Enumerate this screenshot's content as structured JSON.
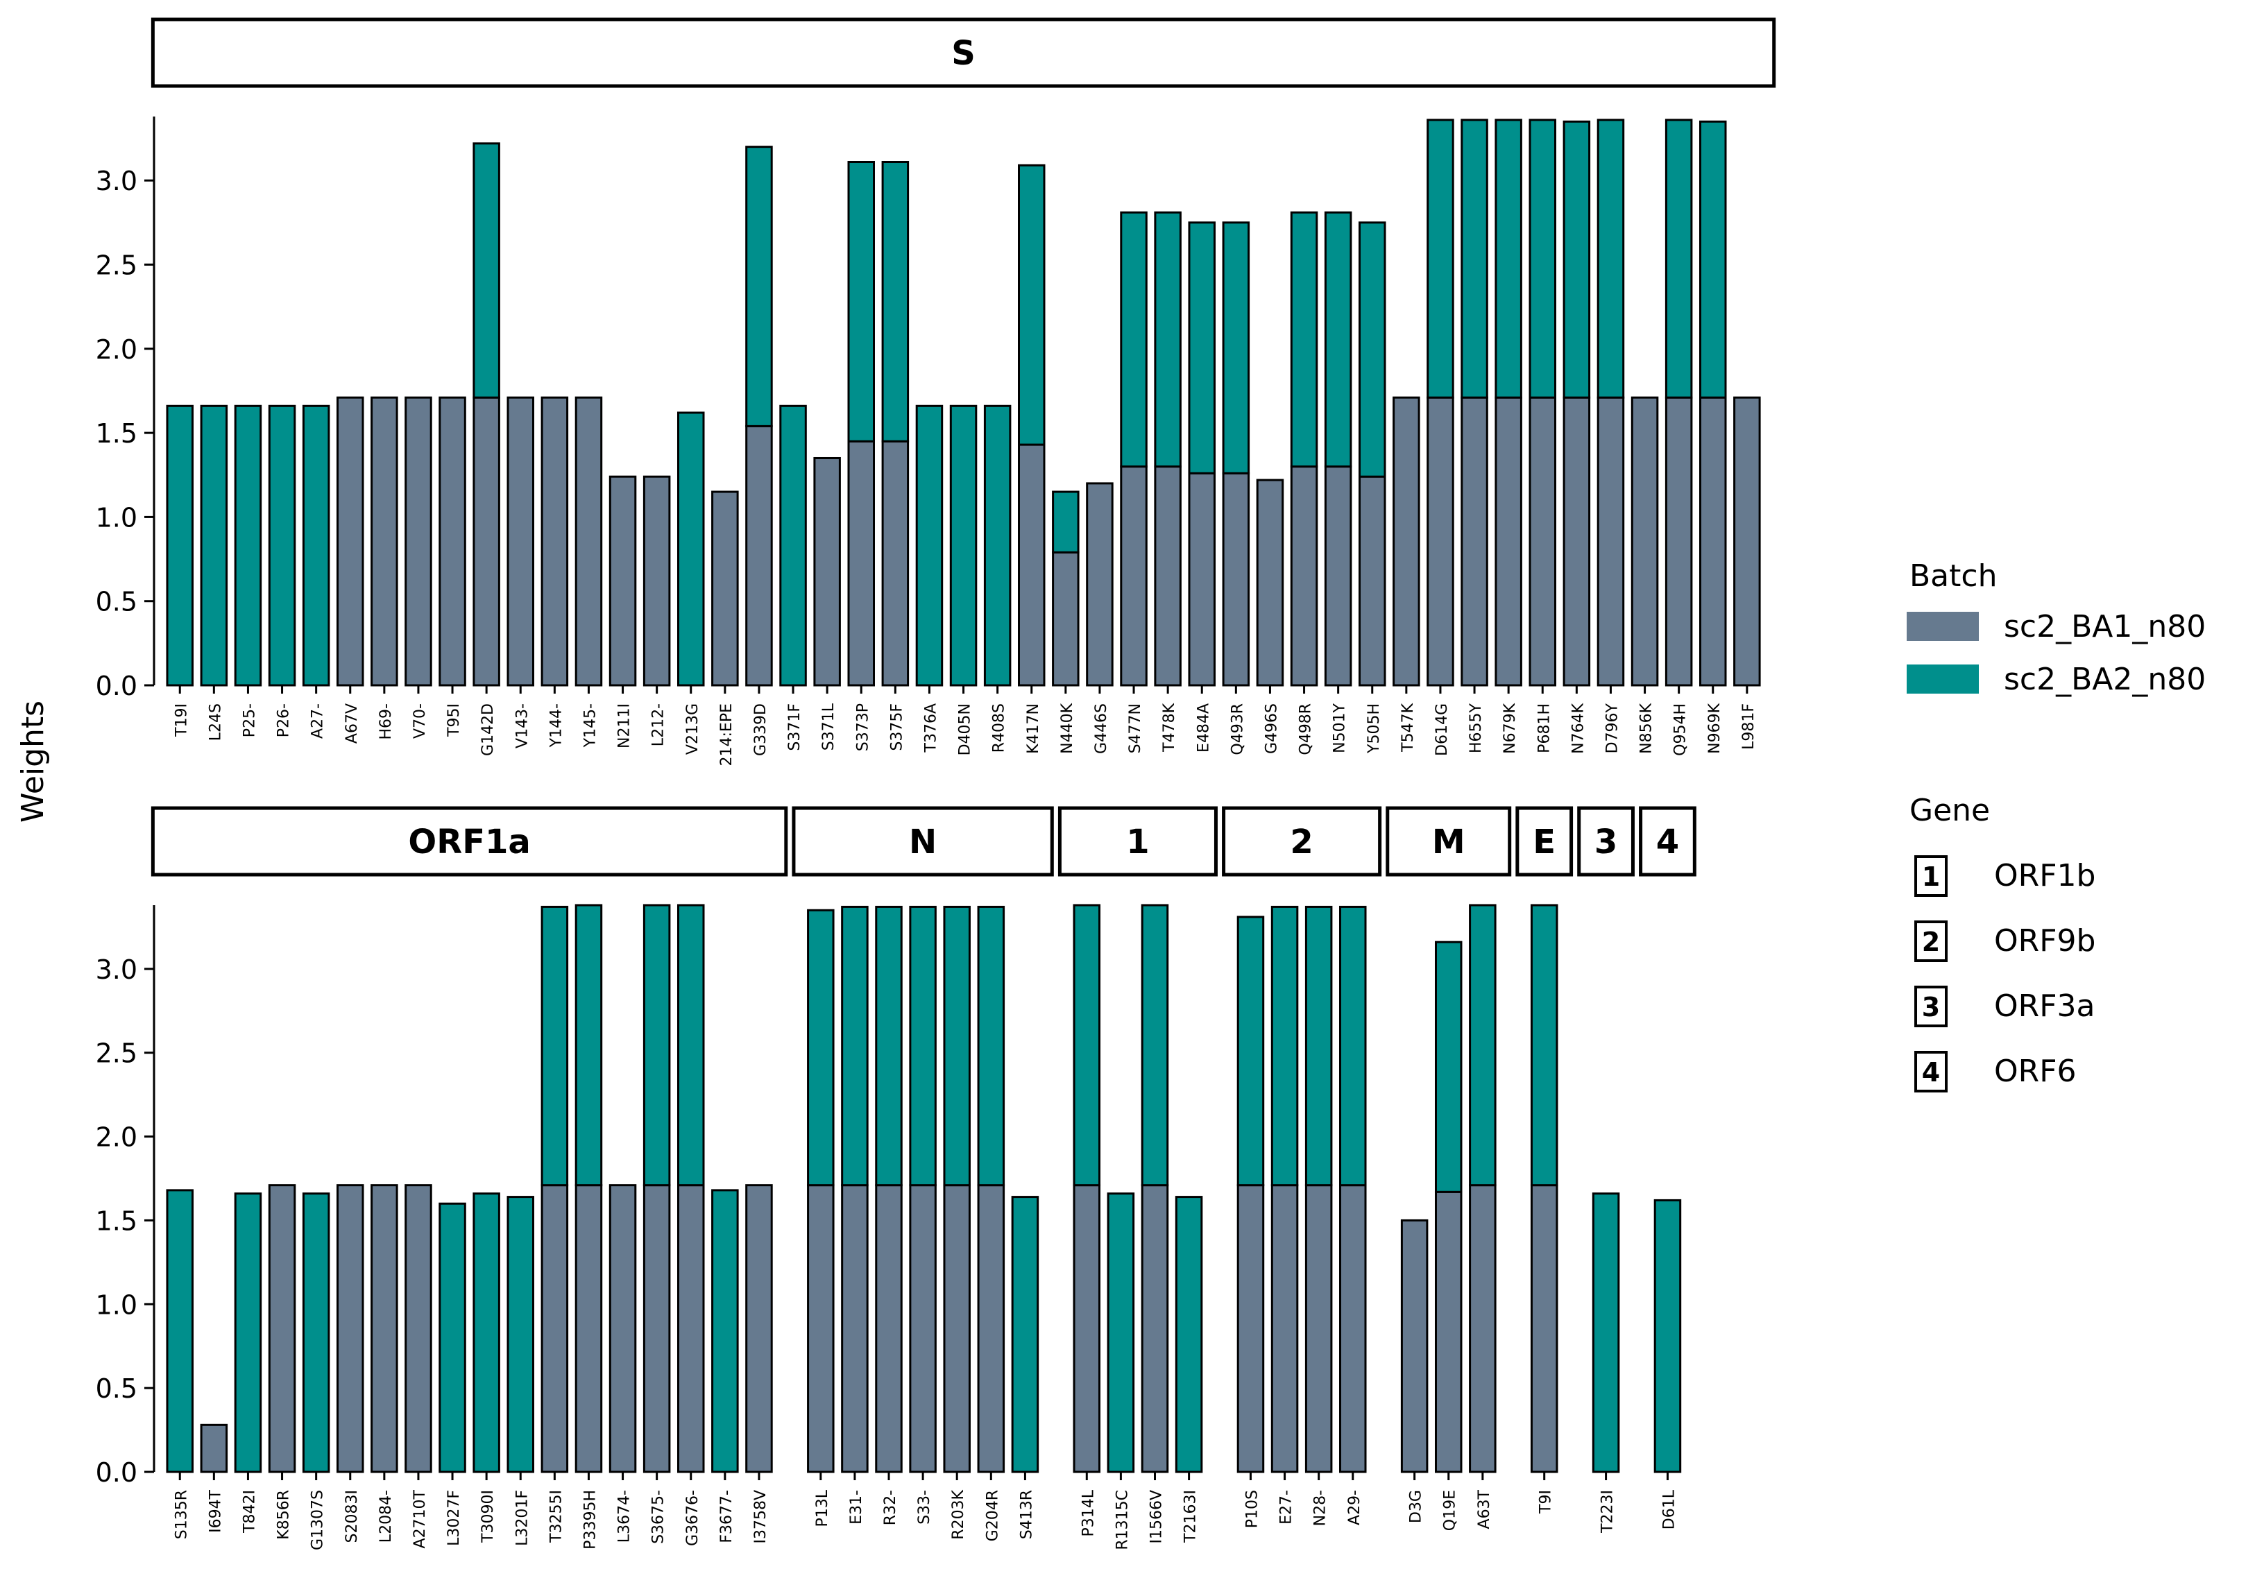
{
  "colors": {
    "sc2_BA1_n80": "#667a8f",
    "sc2_BA2_n80": "#008f8c"
  },
  "chart_data": {
    "type": "bar",
    "stacked": true,
    "ylabel": "Weights",
    "ylim": [
      0,
      3.38
    ],
    "yticks": [
      "0.0",
      "0.5",
      "1.0",
      "1.5",
      "2.0",
      "2.5",
      "3.0"
    ],
    "legend": {
      "position": "right",
      "batch_title": "Batch",
      "batch_items": [
        "sc2_BA1_n80",
        "sc2_BA2_n80"
      ],
      "gene_title": "Gene",
      "gene_items": [
        {
          "key": "1",
          "label": "ORF1b"
        },
        {
          "key": "2",
          "label": "ORF9b"
        },
        {
          "key": "3",
          "label": "ORF3a"
        },
        {
          "key": "4",
          "label": "ORF6"
        }
      ]
    },
    "panels": [
      {
        "row": 0,
        "title": "S",
        "categories": [
          "T19I",
          "L24S",
          "P25-",
          "P26-",
          "A27-",
          "A67V",
          "H69-",
          "V70-",
          "T95I",
          "G142D",
          "V143-",
          "Y144-",
          "Y145-",
          "N211I",
          "L212-",
          "V213G",
          "214:EPE",
          "G339D",
          "S371F",
          "S371L",
          "S373P",
          "S375F",
          "T376A",
          "D405N",
          "R408S",
          "K417N",
          "N440K",
          "G446S",
          "S477N",
          "T478K",
          "E484A",
          "Q493R",
          "G496S",
          "Q498R",
          "N501Y",
          "Y505H",
          "T547K",
          "D614G",
          "H655Y",
          "N679K",
          "P681H",
          "N764K",
          "D796Y",
          "N856K",
          "Q954H",
          "N969K",
          "L981F"
        ],
        "series": [
          {
            "name": "sc2_BA1_n80",
            "values": [
              0,
              0,
              0,
              0,
              0,
              1.71,
              1.71,
              1.71,
              1.71,
              1.71,
              1.71,
              1.71,
              1.71,
              1.24,
              1.24,
              0,
              1.15,
              1.54,
              0,
              1.35,
              1.45,
              1.45,
              0,
              0,
              0,
              1.43,
              0.79,
              1.2,
              1.3,
              1.3,
              1.26,
              1.26,
              1.22,
              1.3,
              1.3,
              1.24,
              1.71,
              1.71,
              1.71,
              1.71,
              1.71,
              1.71,
              1.71,
              1.71,
              1.71,
              1.71,
              1.71
            ]
          },
          {
            "name": "sc2_BA2_n80",
            "values": [
              1.66,
              1.66,
              1.66,
              1.66,
              1.66,
              0,
              0,
              0,
              0,
              1.51,
              0,
              0,
              0,
              0,
              0,
              1.62,
              0,
              1.66,
              1.66,
              0,
              1.66,
              1.66,
              1.66,
              1.66,
              1.66,
              1.66,
              0.36,
              0,
              1.51,
              1.51,
              1.49,
              1.49,
              0,
              1.51,
              1.51,
              1.51,
              0,
              1.65,
              1.65,
              1.65,
              1.65,
              1.64,
              1.65,
              0,
              1.65,
              1.64,
              0
            ]
          }
        ]
      },
      {
        "row": 1,
        "title": "ORF1a",
        "categories": [
          "S135R",
          "I694T",
          "T842I",
          "K856R",
          "G1307S",
          "S2083I",
          "L2084-",
          "A2710T",
          "L3027F",
          "T3090I",
          "L3201F",
          "T3255I",
          "P3395H",
          "L3674-",
          "S3675-",
          "G3676-",
          "F3677-",
          "I3758V"
        ],
        "series": [
          {
            "name": "sc2_BA1_n80",
            "values": [
              0,
              0.28,
              0,
              1.71,
              0,
              1.71,
              1.71,
              1.71,
              0,
              0,
              0,
              1.71,
              1.71,
              1.71,
              1.71,
              1.71,
              0,
              1.71
            ]
          },
          {
            "name": "sc2_BA2_n80",
            "values": [
              1.68,
              0,
              1.66,
              0,
              1.66,
              0,
              0,
              0,
              1.6,
              1.66,
              1.64,
              1.66,
              1.67,
              0,
              1.67,
              1.67,
              1.68,
              0
            ]
          }
        ]
      },
      {
        "row": 1,
        "title": "N",
        "categories": [
          "P13L",
          "E31-",
          "R32-",
          "S33-",
          "R203K",
          "G204R",
          "S413R"
        ],
        "series": [
          {
            "name": "sc2_BA1_n80",
            "values": [
              1.71,
              1.71,
              1.71,
              1.71,
              1.71,
              1.71,
              0
            ]
          },
          {
            "name": "sc2_BA2_n80",
            "values": [
              1.64,
              1.66,
              1.66,
              1.66,
              1.66,
              1.66,
              1.64
            ]
          }
        ]
      },
      {
        "row": 1,
        "title": "1",
        "categories": [
          "P314L",
          "R1315C",
          "I1566V",
          "T2163I"
        ],
        "series": [
          {
            "name": "sc2_BA1_n80",
            "values": [
              1.71,
              0,
              1.71,
              0
            ]
          },
          {
            "name": "sc2_BA2_n80",
            "values": [
              1.67,
              1.66,
              1.67,
              1.64
            ]
          }
        ]
      },
      {
        "row": 1,
        "title": "2",
        "categories": [
          "P10S",
          "E27-",
          "N28-",
          "A29-"
        ],
        "series": [
          {
            "name": "sc2_BA1_n80",
            "values": [
              1.71,
              1.71,
              1.71,
              1.71
            ]
          },
          {
            "name": "sc2_BA2_n80",
            "values": [
              1.6,
              1.66,
              1.66,
              1.66
            ]
          }
        ]
      },
      {
        "row": 1,
        "title": "M",
        "categories": [
          "D3G",
          "Q19E",
          "A63T"
        ],
        "series": [
          {
            "name": "sc2_BA1_n80",
            "values": [
              1.5,
              1.67,
              1.71
            ]
          },
          {
            "name": "sc2_BA2_n80",
            "values": [
              0,
              1.49,
              1.67
            ]
          }
        ]
      },
      {
        "row": 1,
        "title": "E",
        "categories": [
          "T9I"
        ],
        "series": [
          {
            "name": "sc2_BA1_n80",
            "values": [
              1.71
            ]
          },
          {
            "name": "sc2_BA2_n80",
            "values": [
              1.67
            ]
          }
        ]
      },
      {
        "row": 1,
        "title": "3",
        "categories": [
          "T223I"
        ],
        "series": [
          {
            "name": "sc2_BA1_n80",
            "values": [
              0
            ]
          },
          {
            "name": "sc2_BA2_n80",
            "values": [
              1.66
            ]
          }
        ]
      },
      {
        "row": 1,
        "title": "4",
        "categories": [
          "D61L"
        ],
        "series": [
          {
            "name": "sc2_BA1_n80",
            "values": [
              0
            ]
          },
          {
            "name": "sc2_BA2_n80",
            "values": [
              1.62
            ]
          }
        ]
      }
    ]
  }
}
